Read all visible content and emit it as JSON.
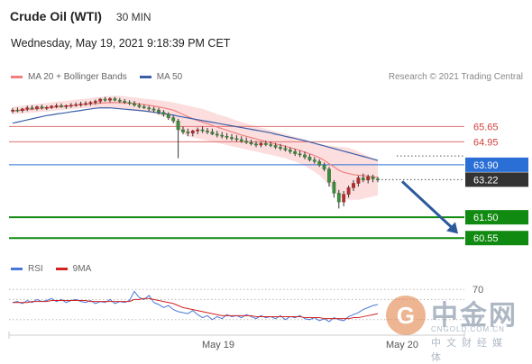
{
  "header": {
    "title": "Crude Oil (WTI)",
    "timeframe": "30 MIN"
  },
  "timestamp": "Wednesday, May 19, 2021 9:18:39 PM CET",
  "legend": {
    "ma20_label": "MA 20 + Bollinger Bands",
    "ma50_label": "MA 50",
    "credit": "Research © 2021 Trading Central"
  },
  "rsi_legend": {
    "rsi_label": "RSI",
    "ma_label": "9MA"
  },
  "colors": {
    "ma20": "#f08080",
    "ma50": "#3a5fa8",
    "support": "#118a11",
    "resistance": "#e07070",
    "pivot": "#2a6fd6",
    "rsi": "#4a78d6",
    "rsi_ma": "#d22222",
    "arrow": "#2c5a9c"
  },
  "watermark": {
    "logo_glyph": "G",
    "name": "中金网",
    "url": "CNGOLD.COM.CN",
    "tagline": "中文财经媒体"
  },
  "chart_data": [
    {
      "type": "candlestick",
      "title": "Crude Oil (WTI)",
      "ylim": [
        59.9,
        66.9
      ],
      "x_ticks": [
        "May 19",
        "May 20"
      ],
      "levels": [
        {
          "label": "65.65",
          "value": 65.65,
          "kind": "resistance"
        },
        {
          "label": "64.95",
          "value": 64.95,
          "kind": "resistance"
        },
        {
          "label": "63.90",
          "value": 63.9,
          "kind": "pivot"
        },
        {
          "label": "63.22",
          "value": 63.22,
          "kind": "last"
        },
        {
          "label": "61.50",
          "value": 61.5,
          "kind": "support"
        },
        {
          "label": "60.55",
          "value": 60.55,
          "kind": "support"
        }
      ],
      "candles": [
        {
          "o": 66.35,
          "h": 66.5,
          "l": 66.25,
          "c": 66.4
        },
        {
          "o": 66.4,
          "h": 66.52,
          "l": 66.3,
          "c": 66.38
        },
        {
          "o": 66.38,
          "h": 66.5,
          "l": 66.28,
          "c": 66.45
        },
        {
          "o": 66.45,
          "h": 66.6,
          "l": 66.35,
          "c": 66.5
        },
        {
          "o": 66.5,
          "h": 66.62,
          "l": 66.4,
          "c": 66.48
        },
        {
          "o": 66.48,
          "h": 66.6,
          "l": 66.38,
          "c": 66.55
        },
        {
          "o": 66.55,
          "h": 66.65,
          "l": 66.42,
          "c": 66.5
        },
        {
          "o": 66.5,
          "h": 66.6,
          "l": 66.4,
          "c": 66.52
        },
        {
          "o": 66.52,
          "h": 66.62,
          "l": 66.45,
          "c": 66.58
        },
        {
          "o": 66.58,
          "h": 66.7,
          "l": 66.48,
          "c": 66.6
        },
        {
          "o": 66.6,
          "h": 66.7,
          "l": 66.5,
          "c": 66.55
        },
        {
          "o": 66.55,
          "h": 66.65,
          "l": 66.45,
          "c": 66.6
        },
        {
          "o": 66.6,
          "h": 66.72,
          "l": 66.5,
          "c": 66.62
        },
        {
          "o": 66.62,
          "h": 66.75,
          "l": 66.55,
          "c": 66.65
        },
        {
          "o": 66.65,
          "h": 66.78,
          "l": 66.55,
          "c": 66.68
        },
        {
          "o": 66.68,
          "h": 66.8,
          "l": 66.6,
          "c": 66.7
        },
        {
          "o": 66.7,
          "h": 66.82,
          "l": 66.6,
          "c": 66.75
        },
        {
          "o": 66.75,
          "h": 66.88,
          "l": 66.65,
          "c": 66.8
        },
        {
          "o": 66.8,
          "h": 66.95,
          "l": 66.7,
          "c": 66.9
        },
        {
          "o": 66.9,
          "h": 67.0,
          "l": 66.78,
          "c": 66.85
        },
        {
          "o": 66.85,
          "h": 66.98,
          "l": 66.75,
          "c": 66.92
        },
        {
          "o": 66.92,
          "h": 67.0,
          "l": 66.8,
          "c": 66.85
        },
        {
          "o": 66.85,
          "h": 66.95,
          "l": 66.72,
          "c": 66.8
        },
        {
          "o": 66.8,
          "h": 66.9,
          "l": 66.68,
          "c": 66.75
        },
        {
          "o": 66.75,
          "h": 66.85,
          "l": 66.62,
          "c": 66.7
        },
        {
          "o": 66.7,
          "h": 66.82,
          "l": 66.55,
          "c": 66.62
        },
        {
          "o": 66.62,
          "h": 66.72,
          "l": 66.48,
          "c": 66.55
        },
        {
          "o": 66.55,
          "h": 66.65,
          "l": 66.45,
          "c": 66.5
        },
        {
          "o": 66.5,
          "h": 66.6,
          "l": 66.35,
          "c": 66.45
        },
        {
          "o": 66.45,
          "h": 66.55,
          "l": 66.3,
          "c": 66.4
        },
        {
          "o": 66.4,
          "h": 66.5,
          "l": 66.2,
          "c": 66.3
        },
        {
          "o": 66.3,
          "h": 66.4,
          "l": 66.1,
          "c": 66.2
        },
        {
          "o": 66.2,
          "h": 66.3,
          "l": 65.95,
          "c": 66.05
        },
        {
          "o": 66.05,
          "h": 66.15,
          "l": 65.8,
          "c": 65.9
        },
        {
          "o": 65.9,
          "h": 66.0,
          "l": 64.2,
          "c": 65.5
        },
        {
          "o": 65.5,
          "h": 65.65,
          "l": 65.3,
          "c": 65.4
        },
        {
          "o": 65.4,
          "h": 65.55,
          "l": 65.2,
          "c": 65.35
        },
        {
          "o": 65.35,
          "h": 65.5,
          "l": 65.2,
          "c": 65.45
        },
        {
          "o": 65.45,
          "h": 65.6,
          "l": 65.3,
          "c": 65.5
        },
        {
          "o": 65.5,
          "h": 65.65,
          "l": 65.35,
          "c": 65.45
        },
        {
          "o": 65.45,
          "h": 65.58,
          "l": 65.3,
          "c": 65.4
        },
        {
          "o": 65.4,
          "h": 65.55,
          "l": 65.25,
          "c": 65.3
        },
        {
          "o": 65.3,
          "h": 65.45,
          "l": 65.15,
          "c": 65.25
        },
        {
          "o": 65.25,
          "h": 65.4,
          "l": 65.1,
          "c": 65.2
        },
        {
          "o": 65.2,
          "h": 65.35,
          "l": 65.05,
          "c": 65.15
        },
        {
          "o": 65.15,
          "h": 65.3,
          "l": 65.0,
          "c": 65.1
        },
        {
          "o": 65.1,
          "h": 65.25,
          "l": 64.95,
          "c": 65.05
        },
        {
          "o": 65.05,
          "h": 65.2,
          "l": 64.9,
          "c": 64.98
        },
        {
          "o": 64.98,
          "h": 65.15,
          "l": 64.85,
          "c": 64.92
        },
        {
          "o": 64.92,
          "h": 65.05,
          "l": 64.78,
          "c": 64.85
        },
        {
          "o": 64.85,
          "h": 64.98,
          "l": 64.7,
          "c": 64.8
        },
        {
          "o": 64.8,
          "h": 64.95,
          "l": 64.7,
          "c": 64.88
        },
        {
          "o": 64.88,
          "h": 65.0,
          "l": 64.75,
          "c": 64.82
        },
        {
          "o": 64.82,
          "h": 64.95,
          "l": 64.7,
          "c": 64.78
        },
        {
          "o": 64.78,
          "h": 64.9,
          "l": 64.62,
          "c": 64.7
        },
        {
          "o": 64.7,
          "h": 64.85,
          "l": 64.55,
          "c": 64.65
        },
        {
          "o": 64.65,
          "h": 64.78,
          "l": 64.5,
          "c": 64.58
        },
        {
          "o": 64.58,
          "h": 64.7,
          "l": 64.4,
          "c": 64.5
        },
        {
          "o": 64.5,
          "h": 64.62,
          "l": 64.3,
          "c": 64.4
        },
        {
          "o": 64.4,
          "h": 64.55,
          "l": 64.25,
          "c": 64.35
        },
        {
          "o": 64.35,
          "h": 64.5,
          "l": 64.15,
          "c": 64.25
        },
        {
          "o": 64.25,
          "h": 64.38,
          "l": 64.05,
          "c": 64.12
        },
        {
          "o": 64.12,
          "h": 64.25,
          "l": 63.95,
          "c": 64.05
        },
        {
          "o": 64.05,
          "h": 64.15,
          "l": 63.8,
          "c": 63.88
        },
        {
          "o": 63.88,
          "h": 64.0,
          "l": 63.6,
          "c": 63.7
        },
        {
          "o": 63.7,
          "h": 63.8,
          "l": 62.9,
          "c": 63.1
        },
        {
          "o": 63.1,
          "h": 63.2,
          "l": 62.4,
          "c": 62.6
        },
        {
          "o": 62.6,
          "h": 62.75,
          "l": 61.9,
          "c": 62.2
        },
        {
          "o": 62.2,
          "h": 62.7,
          "l": 62.0,
          "c": 62.55
        },
        {
          "o": 62.55,
          "h": 62.95,
          "l": 62.4,
          "c": 62.85
        },
        {
          "o": 62.85,
          "h": 63.2,
          "l": 62.7,
          "c": 63.05
        },
        {
          "o": 63.05,
          "h": 63.4,
          "l": 62.9,
          "c": 63.3
        },
        {
          "o": 63.3,
          "h": 63.5,
          "l": 63.1,
          "c": 63.2
        },
        {
          "o": 63.2,
          "h": 63.45,
          "l": 63.05,
          "c": 63.35
        },
        {
          "o": 63.35,
          "h": 63.45,
          "l": 63.1,
          "c": 63.25
        },
        {
          "o": 63.25,
          "h": 63.35,
          "l": 63.1,
          "c": 63.22
        }
      ],
      "ma20": [
        66.35,
        66.38,
        66.4,
        66.42,
        66.44,
        66.46,
        66.48,
        66.5,
        66.52,
        66.54,
        66.56,
        66.58,
        66.6,
        66.62,
        66.64,
        66.66,
        66.68,
        66.7,
        66.72,
        66.73,
        66.74,
        66.74,
        66.74,
        66.73,
        66.72,
        66.7,
        66.68,
        66.65,
        66.62,
        66.58,
        66.54,
        66.5,
        66.45,
        66.4,
        66.3,
        66.2,
        66.1,
        66.0,
        65.92,
        65.85,
        65.78,
        65.7,
        65.62,
        65.55,
        65.48,
        65.4,
        65.33,
        65.26,
        65.2,
        65.14,
        65.08,
        65.02,
        64.96,
        64.9,
        64.85,
        64.8,
        64.74,
        64.68,
        64.62,
        64.55,
        64.48,
        64.4,
        64.32,
        64.22,
        64.1,
        63.95,
        63.8,
        63.65,
        63.55,
        63.5,
        63.45,
        63.42,
        63.4,
        63.38,
        63.35,
        63.32
      ],
      "bb_upper": [
        66.55,
        66.58,
        66.6,
        66.62,
        66.65,
        66.68,
        66.7,
        66.72,
        66.75,
        66.78,
        66.8,
        66.82,
        66.85,
        66.88,
        66.9,
        66.92,
        66.95,
        66.98,
        67.0,
        67.02,
        67.05,
        67.05,
        67.05,
        67.03,
        67.0,
        66.98,
        66.95,
        66.92,
        66.9,
        66.88,
        66.85,
        66.82,
        66.78,
        66.75,
        66.7,
        66.65,
        66.6,
        66.55,
        66.5,
        66.45,
        66.38,
        66.3,
        66.22,
        66.15,
        66.08,
        66.0,
        65.92,
        65.85,
        65.78,
        65.72,
        65.66,
        65.6,
        65.54,
        65.48,
        65.42,
        65.36,
        65.3,
        65.24,
        65.18,
        65.12,
        65.05,
        64.98,
        64.9,
        64.85,
        64.8,
        64.78,
        64.75,
        64.72,
        64.7,
        64.68,
        64.6,
        64.5,
        64.4,
        64.3,
        64.2,
        64.1
      ],
      "bb_lower": [
        66.2,
        66.22,
        66.24,
        66.26,
        66.28,
        66.3,
        66.32,
        66.34,
        66.36,
        66.38,
        66.4,
        66.42,
        66.44,
        66.46,
        66.48,
        66.5,
        66.5,
        66.5,
        66.5,
        66.5,
        66.48,
        66.46,
        66.44,
        66.42,
        66.4,
        66.38,
        66.35,
        66.32,
        66.28,
        66.24,
        66.18,
        66.1,
        66.0,
        65.9,
        65.5,
        65.3,
        65.2,
        65.15,
        65.1,
        65.05,
        65.0,
        64.95,
        64.9,
        64.85,
        64.8,
        64.75,
        64.7,
        64.65,
        64.6,
        64.55,
        64.5,
        64.45,
        64.4,
        64.35,
        64.3,
        64.25,
        64.2,
        64.12,
        64.05,
        63.95,
        63.85,
        63.72,
        63.58,
        63.42,
        63.2,
        62.95,
        62.7,
        62.5,
        62.35,
        62.3,
        62.3,
        62.3,
        62.35,
        62.4,
        62.45,
        62.5
      ],
      "ma50": [
        65.8,
        65.85,
        65.9,
        65.95,
        66.0,
        66.05,
        66.1,
        66.15,
        66.18,
        66.22,
        66.25,
        66.28,
        66.32,
        66.35,
        66.38,
        66.42,
        66.45,
        66.48,
        66.5,
        66.5,
        66.5,
        66.48,
        66.46,
        66.44,
        66.42,
        66.4,
        66.38,
        66.36,
        66.33,
        66.3,
        66.27,
        66.24,
        66.2,
        66.17,
        66.12,
        66.08,
        66.04,
        66.0,
        65.96,
        65.92,
        65.88,
        65.84,
        65.8,
        65.76,
        65.72,
        65.68,
        65.64,
        65.6,
        65.56,
        65.52,
        65.48,
        65.44,
        65.4,
        65.36,
        65.3,
        65.25,
        65.2,
        65.15,
        65.1,
        65.05,
        65.0,
        64.94,
        64.88,
        64.82,
        64.76,
        64.7,
        64.64,
        64.58,
        64.52,
        64.46,
        64.4,
        64.34,
        64.28,
        64.22,
        64.16,
        64.1
      ]
    },
    {
      "type": "line",
      "title": "RSI",
      "ylim": [
        30,
        80
      ],
      "y_ticks": [
        "70"
      ],
      "series": [
        {
          "name": "RSI",
          "values": [
            57,
            58,
            56,
            59,
            57,
            60,
            58,
            59,
            61,
            58,
            60,
            57,
            59,
            60,
            58,
            57,
            59,
            56,
            58,
            57,
            60,
            56,
            58,
            57,
            59,
            68,
            62,
            60,
            64,
            57,
            55,
            52,
            54,
            50,
            48,
            47,
            46,
            49,
            45,
            42,
            44,
            40,
            43,
            41,
            45,
            43,
            44,
            42,
            45,
            43,
            41,
            44,
            42,
            43,
            41,
            44,
            40,
            43,
            42,
            44,
            41,
            40,
            42,
            39,
            41,
            38,
            42,
            40,
            39,
            43,
            45,
            47,
            50,
            52,
            54,
            55
          ]
        },
        {
          "name": "9MA",
          "values": [
            57,
            57,
            57,
            57,
            58,
            58,
            58,
            58,
            59,
            59,
            59,
            59,
            59,
            59,
            59,
            59,
            58,
            58,
            58,
            58,
            58,
            58,
            58,
            58,
            58,
            60,
            60,
            61,
            61,
            60,
            59,
            58,
            57,
            56,
            54,
            52,
            51,
            50,
            49,
            48,
            47,
            46,
            45,
            44,
            44,
            44,
            44,
            44,
            44,
            44,
            43,
            43,
            43,
            43,
            43,
            43,
            43,
            43,
            43,
            43,
            42,
            42,
            42,
            42,
            41,
            41,
            41,
            41,
            41,
            41,
            42,
            42,
            43,
            44,
            45,
            46
          ]
        }
      ]
    }
  ]
}
